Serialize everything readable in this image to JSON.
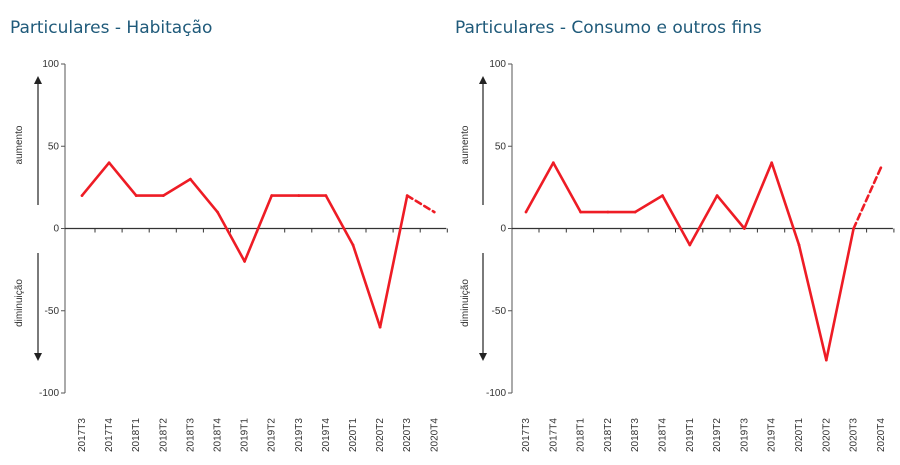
{
  "chart_data": [
    {
      "type": "line",
      "title": "Particulares - Habitação",
      "categories": [
        "2017T3",
        "2017T4",
        "2018T1",
        "2018T2",
        "2018T3",
        "2018T4",
        "2019T1",
        "2019T2",
        "2019T3",
        "2019T4",
        "2020T1",
        "2020T2",
        "2020T3",
        "2020T4"
      ],
      "values": [
        20,
        40,
        20,
        20,
        30,
        10,
        -20,
        20,
        20,
        20,
        -10,
        -60,
        20,
        10
      ],
      "projected_segment": [
        "2020T3",
        "2020T4"
      ],
      "ylim": [
        -100,
        100
      ],
      "yticks": [
        100,
        50,
        0,
        -50,
        -100
      ],
      "up_label": "aumento",
      "down_label": "diminuição",
      "line_color": "#ee1c25"
    },
    {
      "type": "line",
      "title": "Particulares - Consumo e outros fins",
      "categories": [
        "2017T3",
        "2017T4",
        "2018T1",
        "2018T2",
        "2018T3",
        "2018T4",
        "2019T1",
        "2019T2",
        "2019T3",
        "2019T4",
        "2020T1",
        "2020T2",
        "2020T3",
        "2020T4"
      ],
      "values": [
        10,
        40,
        10,
        10,
        10,
        20,
        -10,
        20,
        0,
        40,
        -10,
        -80,
        0,
        37
      ],
      "projected_segment": [
        "2020T3",
        "2020T4"
      ],
      "ylim": [
        -100,
        100
      ],
      "yticks": [
        100,
        50,
        0,
        -50,
        -100
      ],
      "up_label": "aumento",
      "down_label": "diminuição",
      "line_color": "#ee1c25"
    }
  ]
}
